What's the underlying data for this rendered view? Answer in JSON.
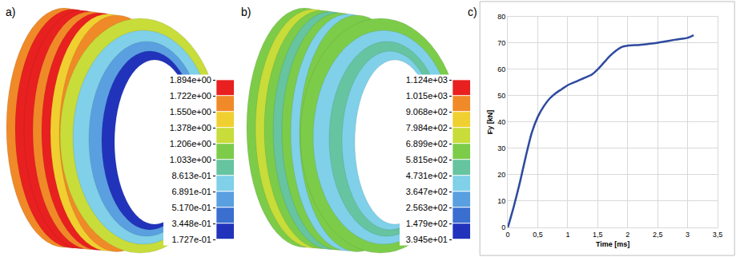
{
  "chart_data": [
    {
      "type": "heatmap",
      "title": "a)",
      "ylim": [
        0.1727,
        1.894
      ],
      "yticks": [
        {
          "value": 0.1727,
          "label": "1.727e-01"
        },
        {
          "value": 0.3448,
          "label": "3.448e-01"
        },
        {
          "value": 0.517,
          "label": "5.170e-01"
        },
        {
          "value": 0.6891,
          "label": "6.891e-01"
        },
        {
          "value": 0.8613,
          "label": "8.613e-01"
        },
        {
          "value": 1.033,
          "label": "1.033e+00"
        },
        {
          "value": 1.206,
          "label": "1.206e+00"
        },
        {
          "value": 1.378,
          "label": "1.378e+00"
        },
        {
          "value": 1.55,
          "label": "1.550e+00"
        },
        {
          "value": 1.722,
          "label": "1.722e+00"
        },
        {
          "value": 1.894,
          "label": "1.894e+00"
        }
      ],
      "colors": [
        "#2233bb",
        "#3a6fd0",
        "#5aa0e0",
        "#7fd0e8",
        "#66c4a0",
        "#7ccc4a",
        "#c8dc3a",
        "#f0d030",
        "#f08a28",
        "#e82020"
      ],
      "tick_labels": "y"
    },
    {
      "type": "heatmap",
      "title": "b)",
      "ylim": [
        39.45,
        1124
      ],
      "yticks": [
        {
          "value": 39.45,
          "label": "3.945e+01"
        },
        {
          "value": 147.9,
          "label": "1.479e+02"
        },
        {
          "value": 256.3,
          "label": "2.563e+02"
        },
        {
          "value": 364.7,
          "label": "3.647e+02"
        },
        {
          "value": 473.1,
          "label": "4.731e+02"
        },
        {
          "value": 581.5,
          "label": "5.815e+02"
        },
        {
          "value": 689.9,
          "label": "6.899e+02"
        },
        {
          "value": 798.4,
          "label": "7.984e+02"
        },
        {
          "value": 906.8,
          "label": "9.068e+02"
        },
        {
          "value": 1015,
          "label": "1.015e+03"
        },
        {
          "value": 1124,
          "label": "1.124e+03"
        }
      ],
      "colors": [
        "#2233bb",
        "#3a6fd0",
        "#5aa0e0",
        "#7fd0e8",
        "#66c4a0",
        "#7ccc4a",
        "#c8dc3a",
        "#f0d030",
        "#f08a28",
        "#e82020"
      ],
      "tick_labels": "y"
    },
    {
      "type": "line",
      "title": "c)",
      "x": [
        0,
        0.1,
        0.2,
        0.3,
        0.4,
        0.5,
        0.6,
        0.7,
        0.8,
        0.9,
        1.0,
        1.1,
        1.2,
        1.3,
        1.4,
        1.5,
        1.6,
        1.7,
        1.8,
        1.9,
        2.0,
        2.2,
        2.4,
        2.6,
        2.8,
        3.0,
        3.1
      ],
      "values": [
        0,
        8,
        17,
        27,
        36,
        42,
        46,
        49,
        51,
        52.5,
        54,
        55,
        56,
        57,
        58,
        60,
        62.5,
        65,
        67,
        68.5,
        69,
        69.3,
        69.8,
        70.5,
        71.3,
        72,
        73
      ],
      "color": "#2e4a9e",
      "xlabel": "Time [ms]",
      "ylabel": "Fy [kN]",
      "xlim": [
        0,
        3.5
      ],
      "ylim": [
        0,
        80
      ],
      "xticks": [
        0,
        {
          "value": 0.5,
          "label": "0,5"
        },
        1,
        {
          "value": 1.5,
          "label": "1,5"
        },
        2,
        {
          "value": 2.5,
          "label": "2,5"
        },
        3,
        {
          "value": 3.5,
          "label": "3,5"
        }
      ],
      "yticks": [
        0,
        10,
        20,
        30,
        40,
        50,
        60,
        70,
        80
      ],
      "grid": true
    }
  ]
}
